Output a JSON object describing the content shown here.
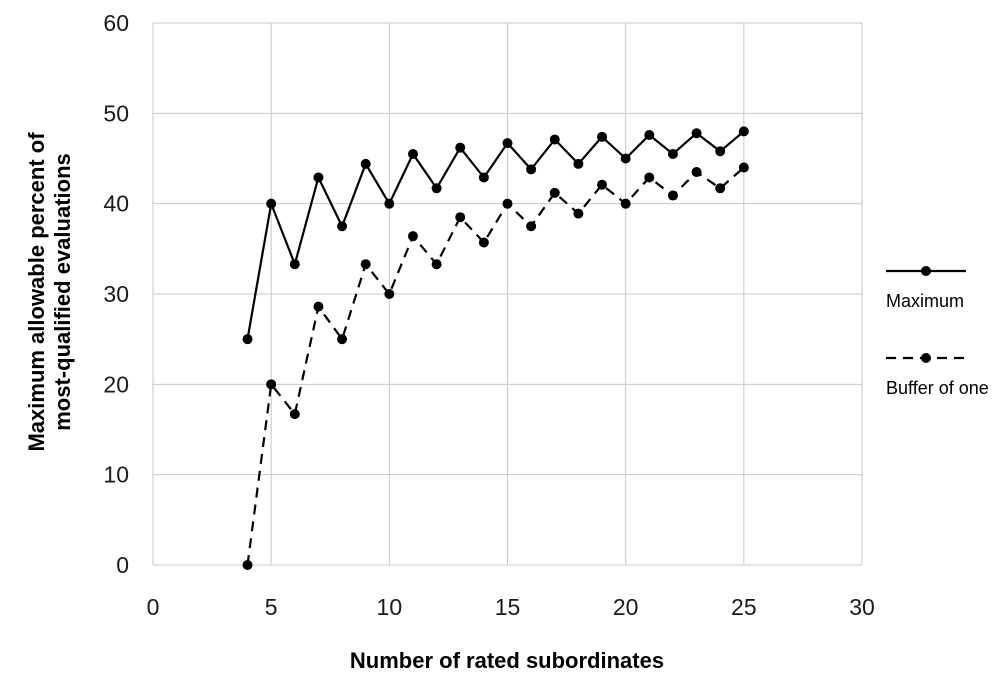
{
  "chart_data": {
    "type": "line",
    "title": "",
    "xlabel": "Number of rated subordinates",
    "ylabel_lines": [
      "Maximum allowable percent of",
      "most-qualified evaluations"
    ],
    "xlim": [
      0,
      30
    ],
    "ylim": [
      0,
      60
    ],
    "xticks": [
      0,
      5,
      10,
      15,
      20,
      25,
      30
    ],
    "yticks": [
      0,
      10,
      20,
      30,
      40,
      50,
      60
    ],
    "grid": true,
    "legend_position": "right",
    "series": [
      {
        "name": "Maximum",
        "style": "solid",
        "color": "#000000",
        "x": [
          4,
          5,
          6,
          7,
          8,
          9,
          10,
          11,
          12,
          13,
          14,
          15,
          16,
          17,
          18,
          19,
          20,
          21,
          22,
          23,
          24,
          25
        ],
        "y": [
          25,
          40,
          33.3,
          42.9,
          37.5,
          44.4,
          40,
          45.5,
          41.7,
          46.2,
          42.9,
          46.7,
          43.8,
          47.1,
          44.4,
          47.4,
          45,
          47.6,
          45.5,
          47.8,
          45.8,
          48
        ]
      },
      {
        "name": "Buffer of one",
        "style": "dashed",
        "color": "#000000",
        "x": [
          4,
          5,
          6,
          7,
          8,
          9,
          10,
          11,
          12,
          13,
          14,
          15,
          16,
          17,
          18,
          19,
          20,
          21,
          22,
          23,
          24,
          25
        ],
        "y": [
          0,
          20,
          16.7,
          28.6,
          25,
          33.3,
          30,
          36.4,
          33.3,
          38.5,
          35.7,
          40,
          37.5,
          41.2,
          38.9,
          42.1,
          40,
          42.9,
          40.9,
          43.5,
          41.7,
          44
        ]
      }
    ]
  }
}
